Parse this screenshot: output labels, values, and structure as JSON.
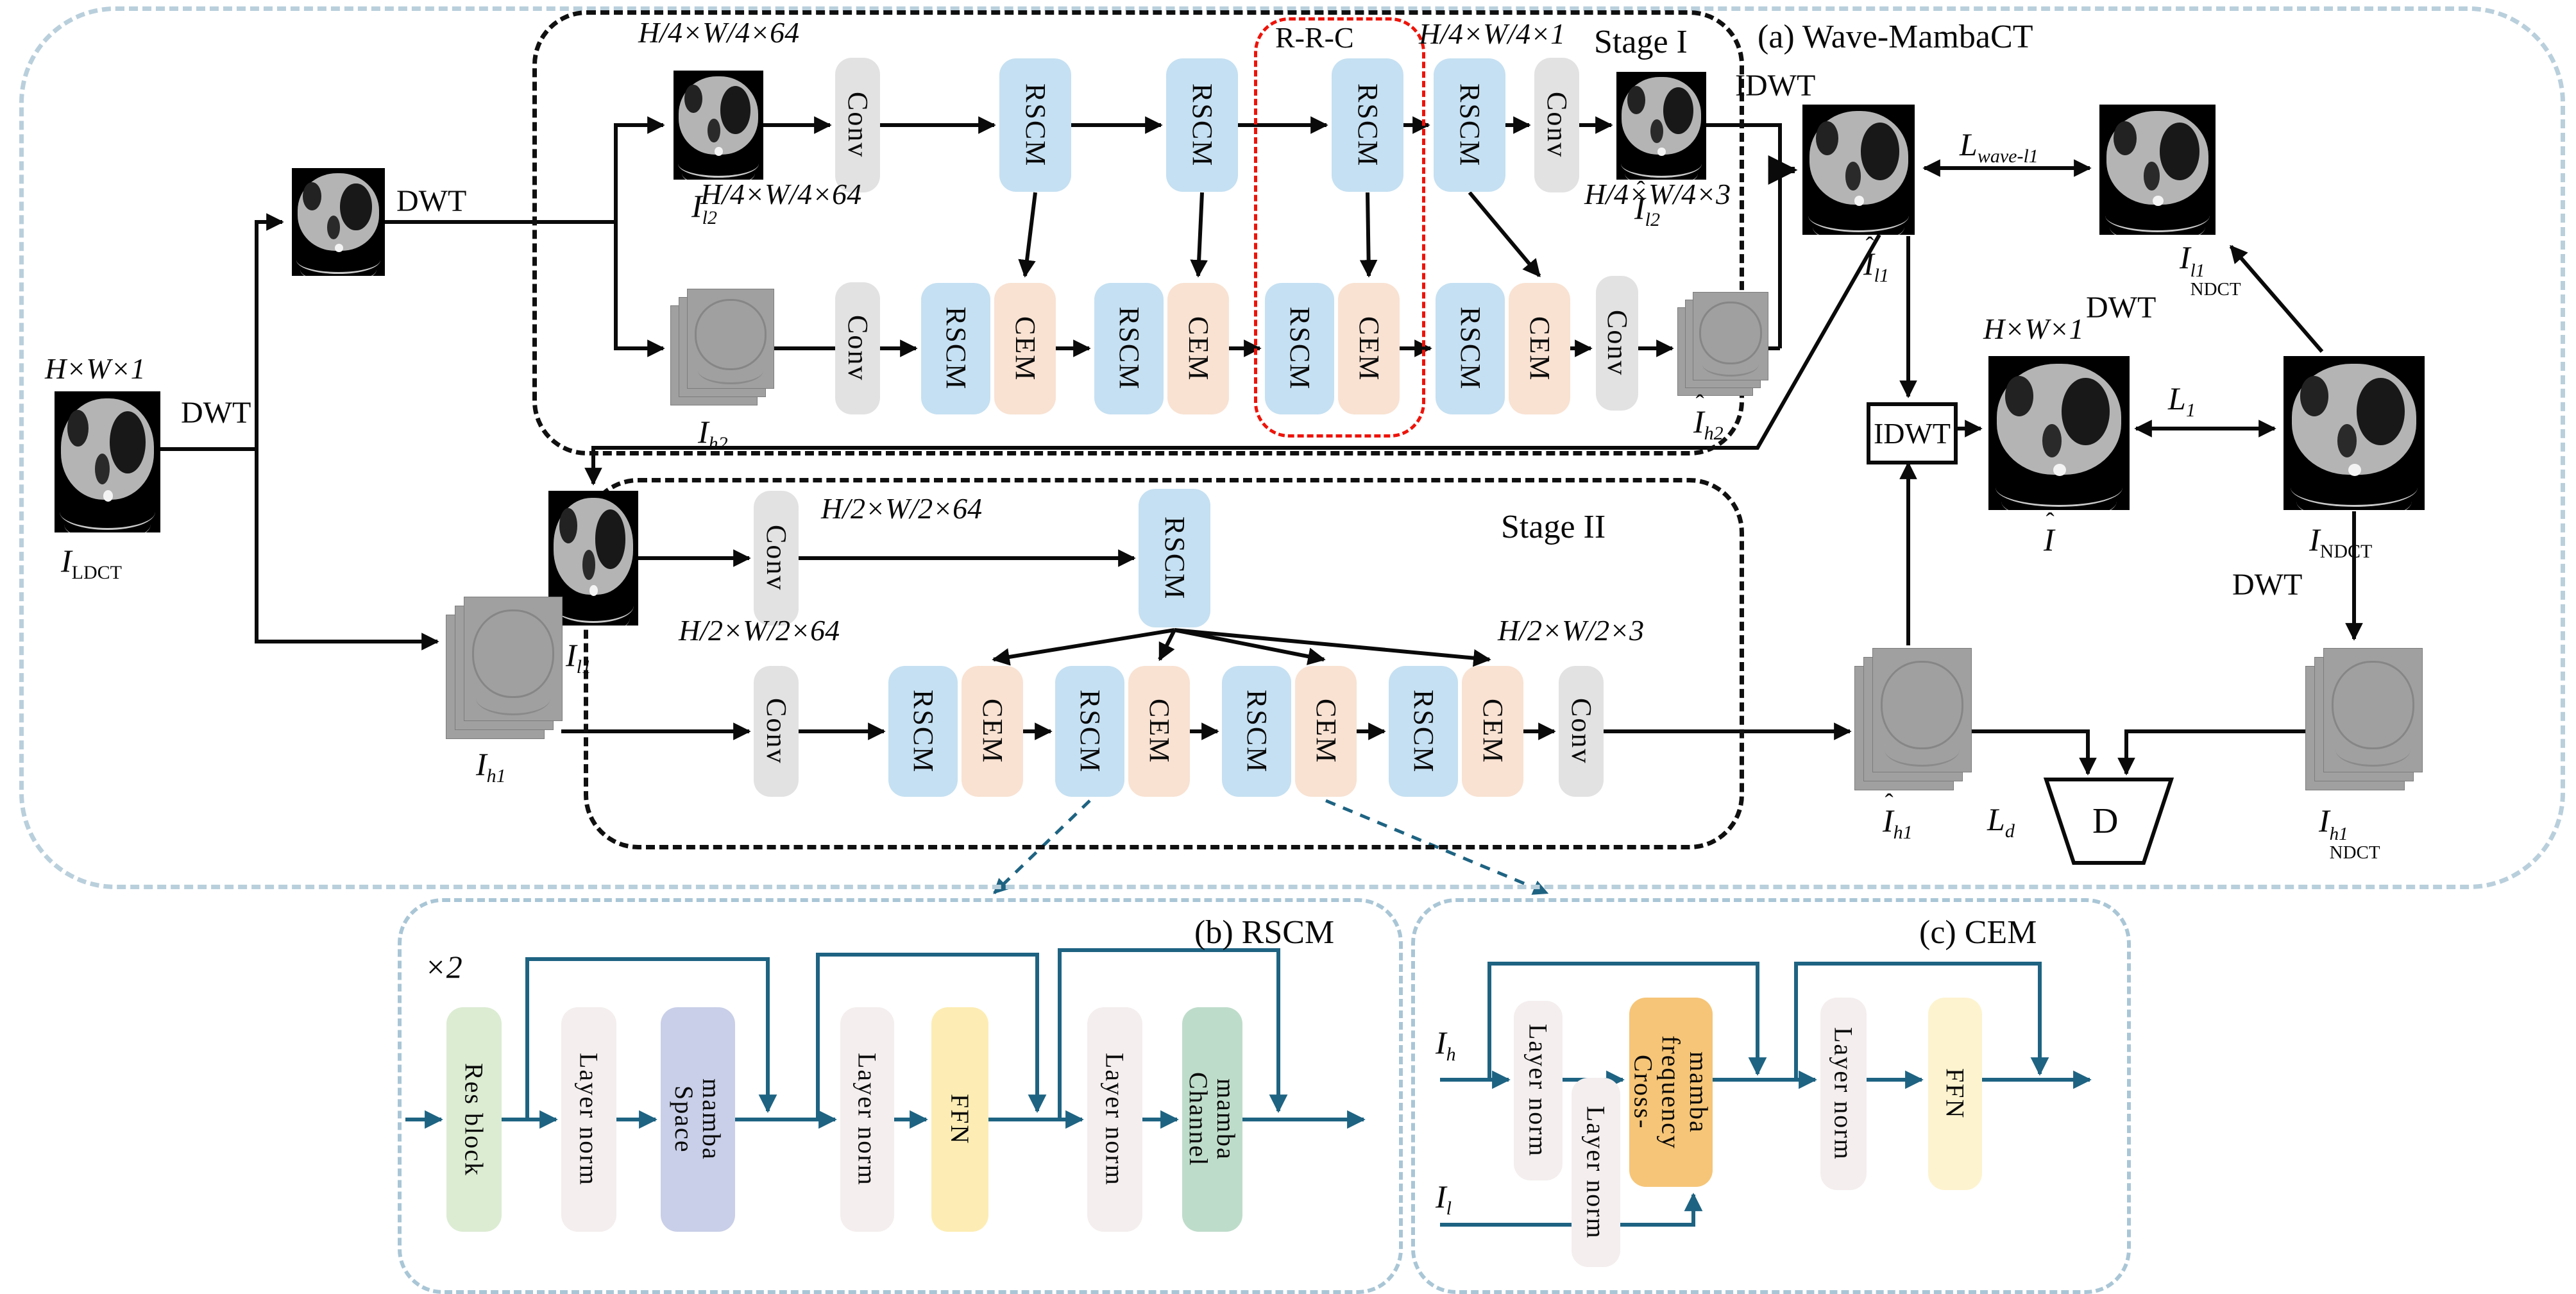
{
  "titles": {
    "a": "(a) Wave-MambaCT",
    "b": "(b) RSCM",
    "c": "(c) CEM"
  },
  "stage_labels": {
    "stage1": "Stage I",
    "stage2": "Stage II",
    "rrc": "R-R-C",
    "repeat": "×2"
  },
  "dims": {
    "hw1_left": "H×W×1",
    "h4w464_top": "H/4×W/4×64",
    "h4w41": "H/4×W/4×1",
    "h4w464_bottom": "H/4×W/4×64",
    "h4w43": "H/4×W/4×3",
    "h2w264_top": "H/2×W/2×64",
    "h2w264_bottom": "H/2×W/2×64",
    "h2w23": "H/2×W/2×3",
    "hw1_right": "H×W×1"
  },
  "ops": {
    "dwt_input": "DWT",
    "dwt_level2": "DWT",
    "idwt_wave": "IDWT",
    "idwt_box": "IDWT",
    "dwt_ndct_up": "DWT",
    "dwt_ndct_down": "DWT"
  },
  "blocks": {
    "conv": "Conv",
    "rscm": "RSCM",
    "cem": "CEM",
    "res_block": "Res block",
    "layer_norm": "Layer norm",
    "space_mamba": "Space\nmamba",
    "ffn": "FFN",
    "channel_mamba": "Channel\nmamba",
    "cross_frequency_mamba": "Cross-\nfrequency\nmamba",
    "discriminator": "D"
  },
  "math_labels": {
    "i_ldct": {
      "base": "I",
      "sub": "LDCT"
    },
    "i_l2": {
      "base": "I",
      "sub": "l2"
    },
    "i_h2": {
      "base": "I",
      "sub": "h2"
    },
    "i_l2_hat": {
      "base": "I",
      "hat": true,
      "sub": "l2"
    },
    "i_h2_hat": {
      "base": "I",
      "hat": true,
      "sub": "h2"
    },
    "i_l1_hat": {
      "base": "I",
      "hat": true,
      "sub": "l1"
    },
    "i_ndct_l1": {
      "base": "I",
      "sub": "NDCT",
      "sup": "l1"
    },
    "l_wave": {
      "base": "L",
      "sub": "wave-l1"
    },
    "i_hat": {
      "base": "I",
      "hat": true
    },
    "i_ndct": {
      "base": "I",
      "sub": "NDCT"
    },
    "l_1": {
      "base": "L",
      "sub": "1"
    },
    "i_l1": {
      "base": "I",
      "sub": "l1"
    },
    "i_h1": {
      "base": "I",
      "sub": "h1"
    },
    "i_h1_hat": {
      "base": "I",
      "hat": true,
      "sub": "h1"
    },
    "i_ndct_h1": {
      "base": "I",
      "sub": "NDCT",
      "sup": "h1"
    },
    "l_d": {
      "base": "L",
      "sub": "d"
    },
    "i_h": {
      "base": "I",
      "sub": "h"
    },
    "i_l": {
      "base": "I",
      "sub": "l"
    }
  },
  "colors": {
    "rscm": "#c5e0f2",
    "cem": "#f9e2d2",
    "conv": "#e2e2e2",
    "res_block": "#dcecd3",
    "layer_norm": "#f4eeee",
    "space_mamba": "#c9cfe8",
    "ffn_rscm": "#fdedb4",
    "ffn_cem": "#fdf3cf",
    "channel_mamba": "#bedcca",
    "cross_frequency_mamba": "#f6c577",
    "arrow_black": "#0a0a0a",
    "arrow_teal": "#1e6382",
    "red_box": "#ee1309",
    "outer_border": "#b9cfdc",
    "detail_border": "#a9c6d6"
  }
}
